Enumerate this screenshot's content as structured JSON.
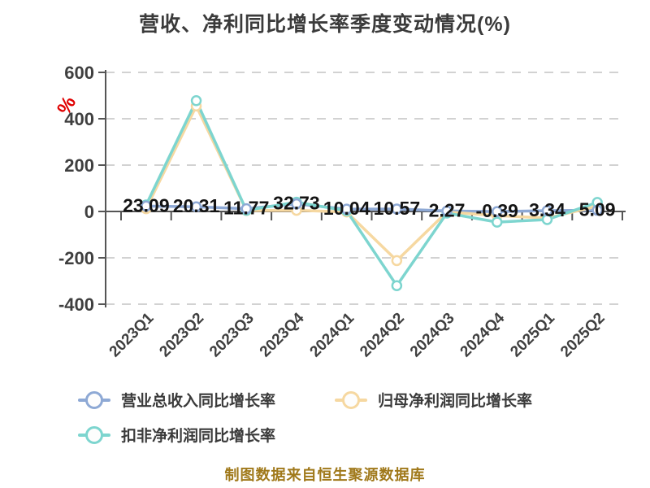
{
  "title": "营收、净利同比增长率季度变动情况(%)",
  "watermark": "制图数据来自恒生聚源数据库",
  "y_axis_unit": {
    "text": "%",
    "color": "#e00000"
  },
  "colors": {
    "axis": "#555555",
    "gridline": "#d2d2d2",
    "tick_label": "#3f3f3f",
    "point_label": "#141414",
    "title": "#3b3b3b",
    "watermark": "#a0791b"
  },
  "chart_data": {
    "type": "line",
    "title": "营收、净利同比增长率季度变动情况(%)",
    "categories": [
      "2023Q1",
      "2023Q2",
      "2023Q3",
      "2023Q4",
      "2024Q1",
      "2024Q2",
      "2024Q3",
      "2024Q4",
      "2025Q1",
      "2025Q2"
    ],
    "series": [
      {
        "name": "营业总收入同比增长率",
        "color": "#8ea9d5",
        "values": [
          23.09,
          20.31,
          11.77,
          32.73,
          10.04,
          10.57,
          2.27,
          -0.39,
          3.34,
          5.09
        ]
      },
      {
        "name": "归母净利润同比增长率",
        "color": "#f6d8a1",
        "values": [
          12,
          455,
          4,
          5,
          -2,
          -212,
          -2,
          -18,
          -28,
          22
        ]
      },
      {
        "name": "扣非净利润同比增长率",
        "color": "#7dd5cf",
        "values": [
          28,
          478,
          5,
          40,
          3,
          -320,
          -7,
          -46,
          -35,
          39
        ]
      }
    ],
    "point_labels": [
      "23.09",
      "20.31",
      "11.77",
      "32.73",
      "10.04",
      "10.57",
      "2.27",
      "-0.39",
      "3.34",
      "5.09"
    ],
    "labeled_series": "营业总收入同比增长率",
    "ylim": [
      -400,
      600
    ],
    "yticks": [
      600,
      400,
      200,
      0,
      -200,
      -400
    ],
    "y_unit": "%",
    "grid": "dashed-horizontal",
    "legend_position": "bottom",
    "x_label_rotation": -45
  }
}
